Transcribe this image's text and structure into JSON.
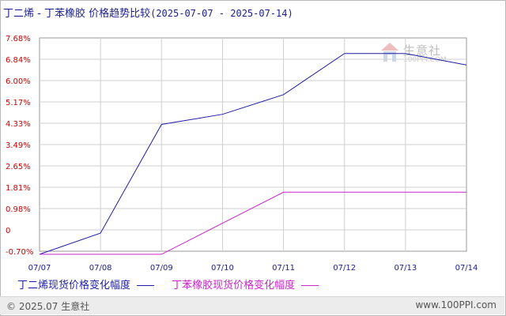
{
  "header": {
    "title": "丁二烯 - 丁苯橡胶 价格趋势比较",
    "date_range": "(2025-07-07 - 2025-07-14)"
  },
  "watermark": {
    "text": "生意社",
    "sub": "100PPI.COM"
  },
  "footer": {
    "left": "© 2025.07 生意社",
    "right": "www.100PPI.com"
  },
  "colors": {
    "series1": "#1f1fa8",
    "series2": "#cc22cc",
    "ytick": "#cc0000",
    "xtick": "#1a1f8c",
    "grid": "#cfcfcf"
  },
  "chart_data": {
    "type": "line",
    "x": [
      "07/07",
      "07/08",
      "07/09",
      "07/10",
      "07/11",
      "07/12",
      "07/13",
      "07/14"
    ],
    "y_ticks": [
      "7.68%",
      "6.84%",
      "6.00%",
      "5.17%",
      "4.33%",
      "3.49%",
      "2.65%",
      "1.81%",
      "0.98%",
      "0",
      "-0.70%"
    ],
    "ylim": [
      -0.7,
      7.68
    ],
    "series": [
      {
        "name": "丁二烯现货价格变化幅度",
        "values": [
          -0.82,
          0.01,
          4.28,
          4.68,
          5.45,
          7.07,
          7.07,
          6.62
        ]
      },
      {
        "name": "丁苯橡胶现货价格变化幅度",
        "values": [
          -0.82,
          -0.82,
          -0.82,
          0.4,
          1.62,
          1.62,
          1.62,
          1.62
        ]
      }
    ],
    "grid": true,
    "legend": "bottom"
  }
}
